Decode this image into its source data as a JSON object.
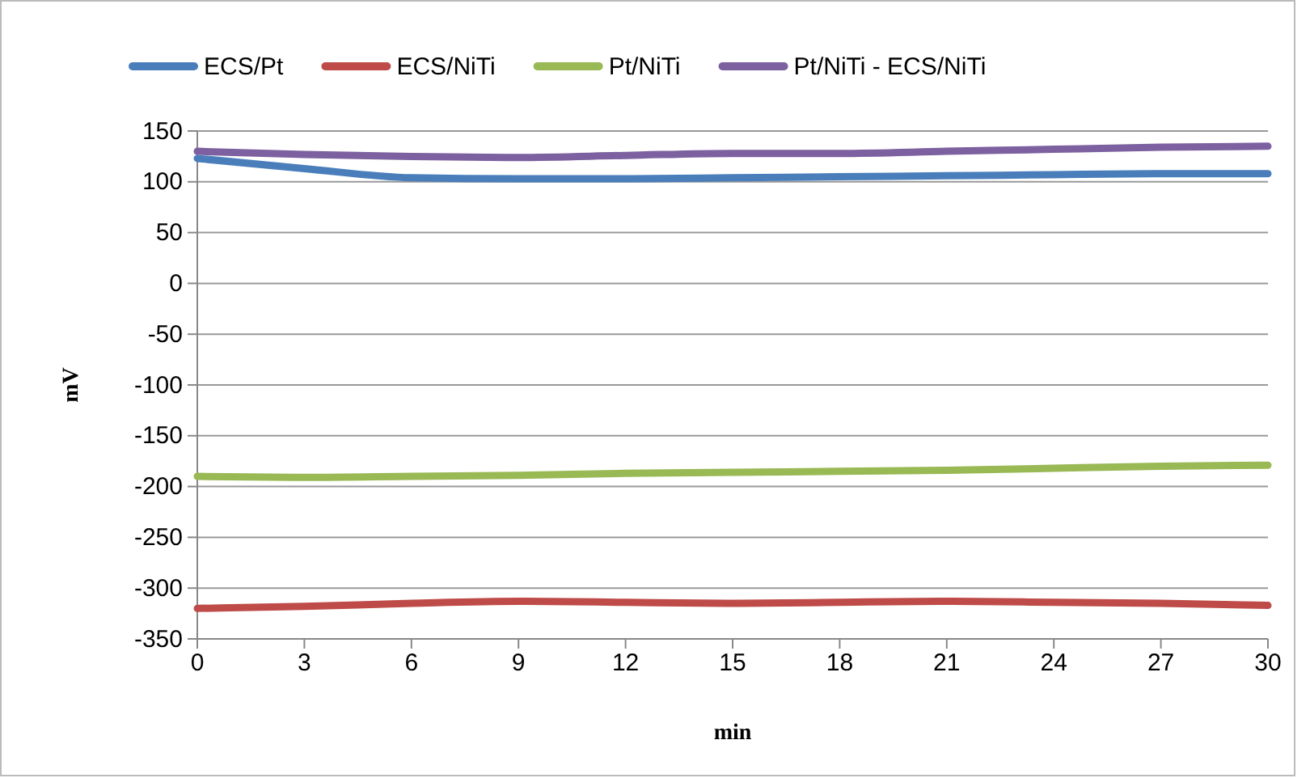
{
  "chart_data": {
    "type": "line",
    "xlabel": "min",
    "ylabel": "mV",
    "x": [
      0,
      3,
      6,
      9,
      12,
      15,
      18,
      21,
      24,
      27,
      30
    ],
    "series": [
      {
        "name": "ECS/Pt",
        "color": "#4a7ebb",
        "values": [
          123,
          113,
          104,
          103,
          103,
          104,
          105,
          106,
          107,
          108,
          108
        ]
      },
      {
        "name": "ECS/NiTi",
        "color": "#be4b48",
        "values": [
          -320,
          -318,
          -315,
          -313,
          -314,
          -315,
          -314,
          -313,
          -314,
          -315,
          -317
        ]
      },
      {
        "name": "Pt/NiTi",
        "color": "#98b954",
        "values": [
          -190,
          -191,
          -190,
          -189,
          -187,
          -186,
          -185,
          -184,
          -182,
          -180,
          -179
        ]
      },
      {
        "name": "Pt/NiTi - ECS/NiTi",
        "color": "#7d60a0",
        "values": [
          130,
          127,
          125,
          124,
          126,
          128,
          128,
          130,
          132,
          134,
          135
        ]
      }
    ],
    "xlim": [
      0,
      30
    ],
    "xticks": [
      0,
      3,
      6,
      9,
      12,
      15,
      18,
      21,
      24,
      27,
      30
    ],
    "ylim": [
      -350,
      150
    ],
    "yticks": [
      -350,
      -300,
      -250,
      -200,
      -150,
      -100,
      -50,
      0,
      50,
      100,
      150
    ],
    "grid": "y",
    "legend": "top",
    "marker": "none",
    "line_style": "solid"
  }
}
